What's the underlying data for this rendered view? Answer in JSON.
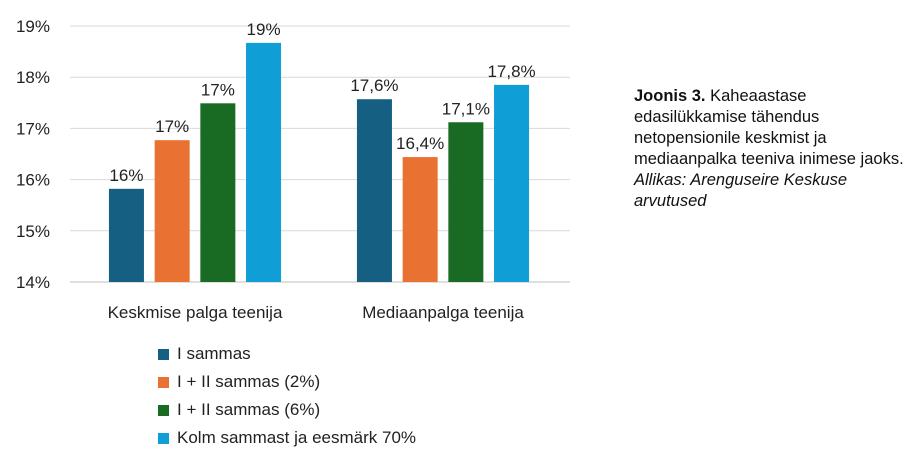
{
  "chart_data": {
    "type": "bar",
    "categories": [
      "Keskmise palga teenija",
      "Mediaanpalga teenija"
    ],
    "series": [
      {
        "name": "I sammas",
        "values": [
          15.82,
          17.57
        ],
        "labels": [
          "16%",
          "17,6%"
        ],
        "color": "#156082"
      },
      {
        "name": "I + II sammas (2%)",
        "values": [
          16.77,
          16.44
        ],
        "labels": [
          "17%",
          "16,4%"
        ],
        "color": "#E97132"
      },
      {
        "name": "I + II sammas (6%)",
        "values": [
          17.49,
          17.12
        ],
        "labels": [
          "17%",
          "17,1%"
        ],
        "color": "#196B24"
      },
      {
        "name": "Kolm sammast ja eesmärk 70%",
        "values": [
          18.67,
          17.85
        ],
        "labels": [
          "19%",
          "17,8%"
        ],
        "color": "#0F9ED5"
      }
    ],
    "ylim": [
      14,
      19
    ],
    "yticks": [
      14,
      15,
      16,
      17,
      18,
      19
    ],
    "ytick_labels": [
      "14%",
      "15%",
      "16%",
      "17%",
      "18%",
      "19%"
    ],
    "grid": true,
    "legend_position": "bottom"
  },
  "caption": {
    "label": "Joonis 3.",
    "text": "Kaheaastase edasilükkamise tähendus netopensionile keskmist ja mediaanpalka teeniva inimese jaoks.",
    "source": "Allikas: Arenguseire Keskuse arvutused"
  }
}
